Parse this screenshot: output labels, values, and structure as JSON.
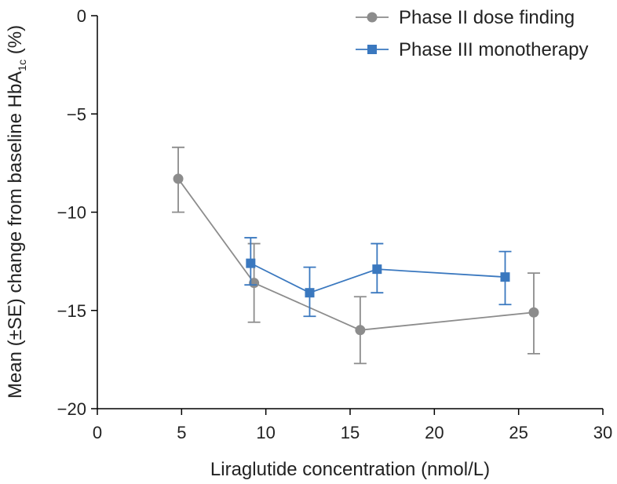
{
  "chart_data": {
    "type": "line",
    "title": "",
    "xlabel": "Liraglutide concentration (nmol/L)",
    "ylabel": {
      "prefix": "Mean (±SE) change from baseline HbA",
      "subscript": "1c",
      "suffix": " (%)"
    },
    "xlim": [
      0,
      30
    ],
    "ylim": [
      -20,
      0
    ],
    "xticks": [
      0,
      5,
      10,
      15,
      20,
      25,
      30
    ],
    "yticks": [
      0,
      -5,
      -10,
      -15,
      -20
    ],
    "xtick_labels": [
      "0",
      "5",
      "10",
      "15",
      "20",
      "25",
      "30"
    ],
    "ytick_labels": [
      "0",
      "−5",
      "−10",
      "−15",
      "−20"
    ],
    "grid": false,
    "legend_position": "top-right",
    "series": [
      {
        "name": "Phase II dose finding",
        "color": "#8c8c8c",
        "marker": "circle",
        "x": [
          4.8,
          9.3,
          15.6,
          25.9
        ],
        "y": [
          -8.3,
          -13.6,
          -16.0,
          -15.1
        ],
        "err_low": [
          -10.0,
          -15.6,
          -17.7,
          -17.2
        ],
        "err_high": [
          -6.7,
          -11.6,
          -14.3,
          -13.1
        ]
      },
      {
        "name": "Phase III monotherapy",
        "color": "#3a78bf",
        "marker": "square",
        "x": [
          9.1,
          12.6,
          16.6,
          24.2
        ],
        "y": [
          -12.6,
          -14.1,
          -12.9,
          -13.3
        ],
        "err_low": [
          -13.7,
          -15.3,
          -14.1,
          -14.7
        ],
        "err_high": [
          -11.3,
          -12.8,
          -11.6,
          -12.0
        ]
      }
    ]
  }
}
